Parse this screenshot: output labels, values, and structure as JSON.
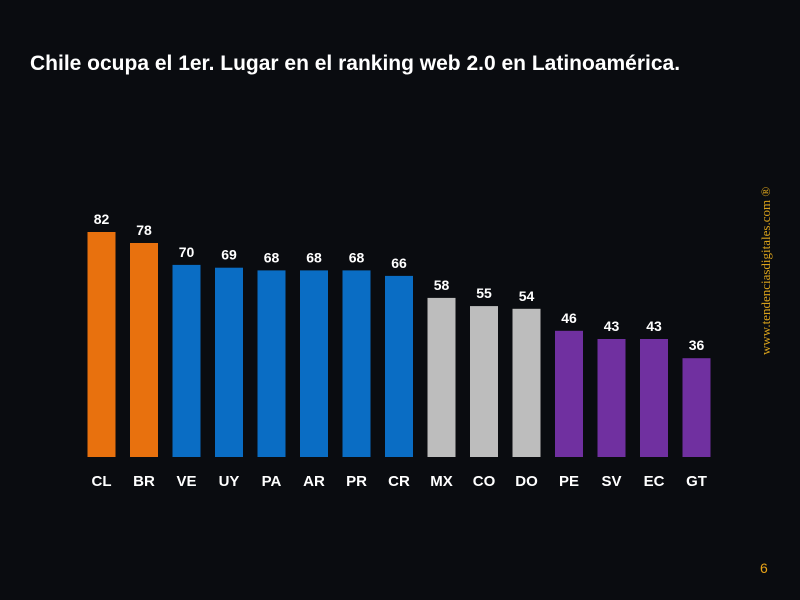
{
  "title": "Chile ocupa el 1er. Lugar en el ranking web 2.0 en Latinoamérica.",
  "watermark": "www.tendenciasdigitales.com ®",
  "page_number": "6",
  "colors": {
    "background": "#0a0c10",
    "orange": "#e8710e",
    "blue": "#0a6dc4",
    "gray": "#bdbdbd",
    "purple": "#7030a0",
    "label": "#ffffff",
    "accent": "#e8a317"
  },
  "chart_data": {
    "type": "bar",
    "title": "Chile ocupa el 1er. Lugar en el ranking web 2.0 en Latinoamérica.",
    "xlabel": "",
    "ylabel": "",
    "ylim": [
      0,
      82
    ],
    "grid": false,
    "categories": [
      "CL",
      "BR",
      "VE",
      "UY",
      "PA",
      "AR",
      "PR",
      "CR",
      "MX",
      "CO",
      "DO",
      "PE",
      "SV",
      "EC",
      "GT"
    ],
    "values": [
      82,
      78,
      70,
      69,
      68,
      68,
      68,
      66,
      58,
      55,
      54,
      46,
      43,
      43,
      36
    ],
    "bar_colors": [
      "orange",
      "orange",
      "blue",
      "blue",
      "blue",
      "blue",
      "blue",
      "blue",
      "gray",
      "gray",
      "gray",
      "purple",
      "purple",
      "purple",
      "purple"
    ]
  }
}
